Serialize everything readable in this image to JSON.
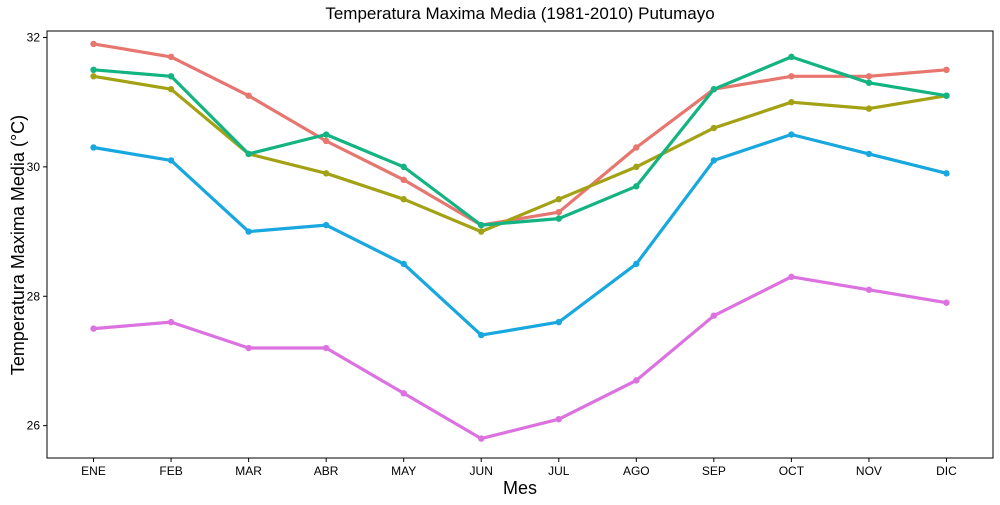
{
  "chart_data": {
    "type": "line",
    "title": "Temperatura Maxima Media (1981-2010)  Putumayo",
    "xlabel": "Mes",
    "ylabel": "Temperatura Maxima Media  (°C)",
    "categories": [
      "ENE",
      "FEB",
      "MAR",
      "ABR",
      "MAY",
      "JUN",
      "JUL",
      "AGO",
      "SEP",
      "OCT",
      "NOV",
      "DIC"
    ],
    "ylim": [
      25.5,
      32.1
    ],
    "yticks": [
      26,
      28,
      30,
      32
    ],
    "grid": false,
    "legend": "none",
    "series": [
      {
        "color": "#E7766F",
        "values": [
          31.9,
          31.7,
          31.1,
          30.4,
          29.8,
          29.1,
          29.3,
          30.3,
          31.2,
          31.4,
          31.4,
          31.5
        ]
      },
      {
        "color": "#A3A114",
        "values": [
          31.4,
          31.2,
          30.2,
          29.9,
          29.5,
          29.0,
          29.5,
          30.0,
          30.6,
          31.0,
          30.9,
          31.1
        ]
      },
      {
        "color": "#13B382",
        "values": [
          31.5,
          31.4,
          30.2,
          30.5,
          30.0,
          29.1,
          29.2,
          29.7,
          31.2,
          31.7,
          31.3,
          31.1
        ]
      },
      {
        "color": "#18A7DF",
        "values": [
          30.3,
          30.1,
          29.0,
          29.1,
          28.5,
          27.4,
          27.6,
          28.5,
          30.1,
          30.5,
          30.2,
          29.9
        ]
      },
      {
        "color": "#DB72E0",
        "values": [
          27.5,
          27.6,
          27.2,
          27.2,
          26.5,
          25.8,
          26.1,
          26.7,
          27.7,
          28.3,
          28.1,
          27.9
        ]
      }
    ]
  }
}
